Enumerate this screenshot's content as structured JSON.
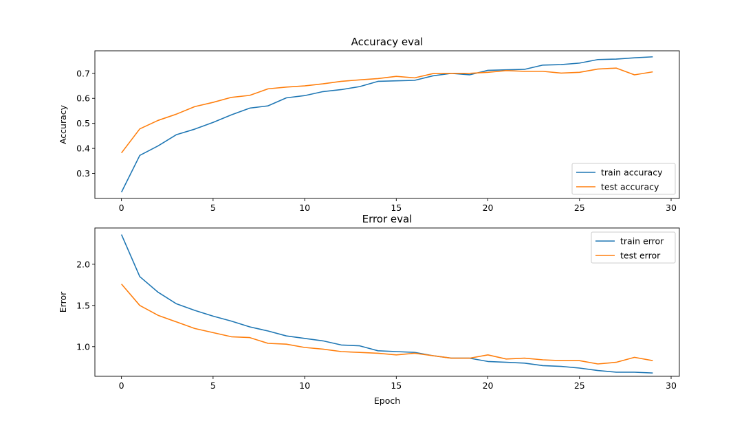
{
  "chart_data": [
    {
      "type": "line",
      "title": "Accuracy eval",
      "xlabel": "",
      "ylabel": "Accuracy",
      "xlim": [
        -1.45,
        30.45
      ],
      "ylim": [
        0.2,
        0.79
      ],
      "xticks": [
        0,
        5,
        10,
        15,
        20,
        25,
        30
      ],
      "yticks": [
        0.3,
        0.4,
        0.5,
        0.6,
        0.7
      ],
      "xtick_labels": [
        "0",
        "5",
        "10",
        "15",
        "20",
        "25",
        "30"
      ],
      "ytick_labels": [
        "0.3",
        "0.4",
        "0.5",
        "0.6",
        "0.7"
      ],
      "legend_position": "lower right",
      "grid": false,
      "x": [
        0,
        1,
        2,
        3,
        4,
        5,
        6,
        7,
        8,
        9,
        10,
        11,
        12,
        13,
        14,
        15,
        16,
        17,
        18,
        19,
        20,
        21,
        22,
        23,
        24,
        25,
        26,
        27,
        28,
        29
      ],
      "series": [
        {
          "name": "train accuracy",
          "color": "#1f77b4",
          "values": [
            0.225,
            0.372,
            0.41,
            0.455,
            0.477,
            0.504,
            0.534,
            0.561,
            0.57,
            0.602,
            0.611,
            0.627,
            0.635,
            0.647,
            0.668,
            0.67,
            0.672,
            0.69,
            0.7,
            0.694,
            0.712,
            0.714,
            0.716,
            0.733,
            0.735,
            0.741,
            0.755,
            0.757,
            0.762,
            0.766
          ]
        },
        {
          "name": "test accuracy",
          "color": "#ff7f0e",
          "values": [
            0.382,
            0.478,
            0.512,
            0.537,
            0.567,
            0.584,
            0.604,
            0.612,
            0.638,
            0.645,
            0.65,
            0.658,
            0.668,
            0.674,
            0.679,
            0.688,
            0.682,
            0.699,
            0.7,
            0.7,
            0.704,
            0.711,
            0.708,
            0.708,
            0.701,
            0.704,
            0.717,
            0.721,
            0.694,
            0.706
          ]
        }
      ]
    },
    {
      "type": "line",
      "title": "Error eval",
      "xlabel": "Epoch",
      "ylabel": "Error",
      "xlim": [
        -1.45,
        30.45
      ],
      "ylim": [
        0.64,
        2.44
      ],
      "xticks": [
        0,
        5,
        10,
        15,
        20,
        25,
        30
      ],
      "yticks": [
        1.0,
        1.5,
        2.0
      ],
      "xtick_labels": [
        "0",
        "5",
        "10",
        "15",
        "20",
        "25",
        "30"
      ],
      "ytick_labels": [
        "1.0",
        "1.5",
        "2.0"
      ],
      "legend_position": "upper right",
      "grid": false,
      "x": [
        0,
        1,
        2,
        3,
        4,
        5,
        6,
        7,
        8,
        9,
        10,
        11,
        12,
        13,
        14,
        15,
        16,
        17,
        18,
        19,
        20,
        21,
        22,
        23,
        24,
        25,
        26,
        27,
        28,
        29
      ],
      "series": [
        {
          "name": "train error",
          "color": "#1f77b4",
          "values": [
            2.36,
            1.85,
            1.66,
            1.52,
            1.44,
            1.37,
            1.31,
            1.24,
            1.19,
            1.13,
            1.1,
            1.07,
            1.02,
            1.01,
            0.95,
            0.94,
            0.93,
            0.89,
            0.86,
            0.86,
            0.82,
            0.81,
            0.8,
            0.77,
            0.76,
            0.74,
            0.71,
            0.69,
            0.69,
            0.68
          ]
        },
        {
          "name": "test error",
          "color": "#ff7f0e",
          "values": [
            1.76,
            1.5,
            1.38,
            1.3,
            1.22,
            1.17,
            1.12,
            1.11,
            1.04,
            1.03,
            0.99,
            0.97,
            0.94,
            0.93,
            0.92,
            0.9,
            0.92,
            0.89,
            0.86,
            0.86,
            0.9,
            0.85,
            0.86,
            0.84,
            0.83,
            0.83,
            0.79,
            0.81,
            0.87,
            0.83
          ]
        }
      ]
    }
  ]
}
